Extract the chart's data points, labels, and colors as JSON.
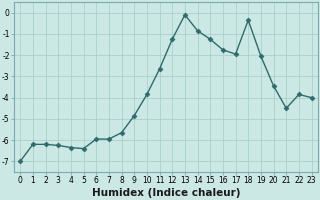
{
  "x": [
    0,
    1,
    2,
    3,
    4,
    5,
    6,
    7,
    8,
    9,
    10,
    11,
    12,
    13,
    14,
    15,
    16,
    17,
    18,
    19,
    20,
    21,
    22,
    23
  ],
  "y": [
    -7.0,
    -6.2,
    -6.2,
    -6.25,
    -6.35,
    -6.4,
    -5.95,
    -5.95,
    -5.65,
    -4.85,
    -3.85,
    -2.65,
    -1.25,
    -0.1,
    -0.85,
    -1.25,
    -1.75,
    -1.95,
    -0.35,
    -2.05,
    -3.45,
    -4.5,
    -3.85,
    -4.0
  ],
  "line_color": "#2e6b6b",
  "marker": "D",
  "marker_size": 2.5,
  "bg_color": "#cce8e4",
  "grid_color": "#aacfcb",
  "xlabel": "Humidex (Indice chaleur)",
  "xlim": [
    -0.5,
    23.5
  ],
  "ylim": [
    -7.5,
    0.5
  ],
  "yticks": [
    0,
    -1,
    -2,
    -3,
    -4,
    -5,
    -6,
    -7
  ],
  "xticks": [
    0,
    1,
    2,
    3,
    4,
    5,
    6,
    7,
    8,
    9,
    10,
    11,
    12,
    13,
    14,
    15,
    16,
    17,
    18,
    19,
    20,
    21,
    22,
    23
  ],
  "tick_fontsize": 5.5,
  "xlabel_fontsize": 7.5,
  "line_width": 1.0
}
